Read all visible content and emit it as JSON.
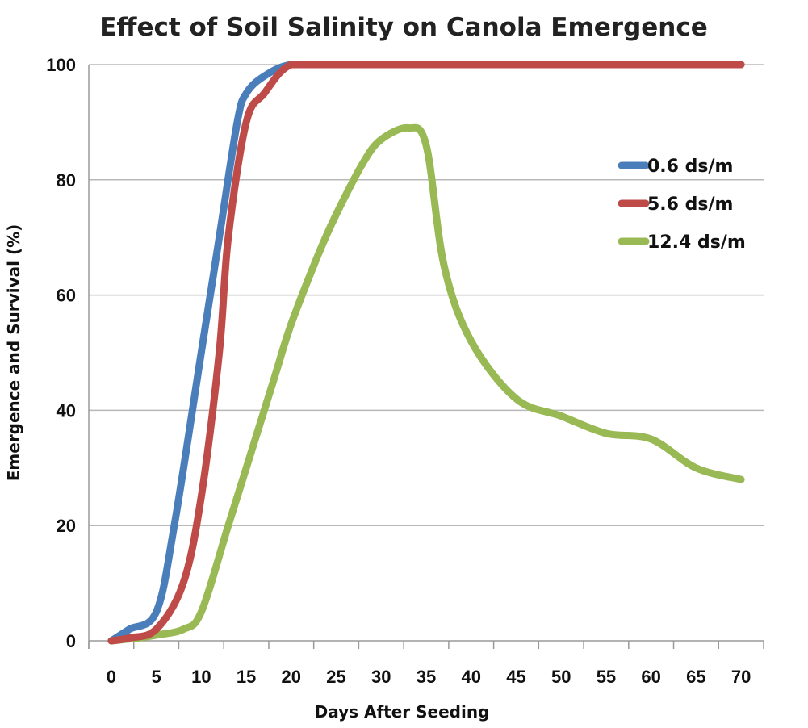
{
  "chart_data": {
    "type": "line",
    "title": "Effect of Soil Salinity on Canola Emergence",
    "xlabel": "Days After Seeding",
    "ylabel": "Emergence and Survival (%)",
    "xlim": [
      -2.5,
      72.5
    ],
    "ylim": [
      0,
      100
    ],
    "x_ticks": [
      0,
      5,
      10,
      15,
      20,
      25,
      30,
      35,
      40,
      45,
      50,
      55,
      60,
      65,
      70
    ],
    "y_ticks": [
      0,
      20,
      40,
      60,
      80,
      100
    ],
    "grid": true,
    "legend_position": "right",
    "series": [
      {
        "name": "0.6 ds/m",
        "color": "#4a7ebb",
        "x": [
          0,
          2,
          5,
          7,
          10,
          12,
          14,
          15,
          17,
          20,
          25,
          30,
          35,
          40,
          45,
          50,
          55,
          60,
          65,
          70
        ],
        "y": [
          0,
          2,
          5,
          20,
          50,
          70,
          90,
          95,
          98,
          100,
          100,
          100,
          100,
          100,
          100,
          100,
          100,
          100,
          100,
          100
        ]
      },
      {
        "name": "5.6 ds/m",
        "color": "#be4b48",
        "x": [
          0,
          2,
          5,
          8,
          10,
          12,
          13,
          15,
          17,
          20,
          25,
          30,
          35,
          40,
          45,
          50,
          55,
          60,
          65,
          70
        ],
        "y": [
          0,
          0.5,
          2,
          10,
          25,
          50,
          70,
          90,
          95,
          100,
          100,
          100,
          100,
          100,
          100,
          100,
          100,
          100,
          100,
          100
        ]
      },
      {
        "name": "12.4 ds/m",
        "color": "#98b954",
        "x": [
          0,
          3,
          5,
          8,
          10,
          13,
          15,
          18,
          20,
          23,
          25,
          28,
          30,
          33,
          35,
          37,
          40,
          45,
          50,
          55,
          60,
          65,
          70
        ],
        "y": [
          0,
          0.5,
          1,
          2,
          5,
          20,
          30,
          45,
          55,
          67,
          74,
          83,
          87,
          89,
          86,
          65,
          52,
          42,
          39,
          36,
          35,
          30,
          28
        ]
      }
    ]
  }
}
